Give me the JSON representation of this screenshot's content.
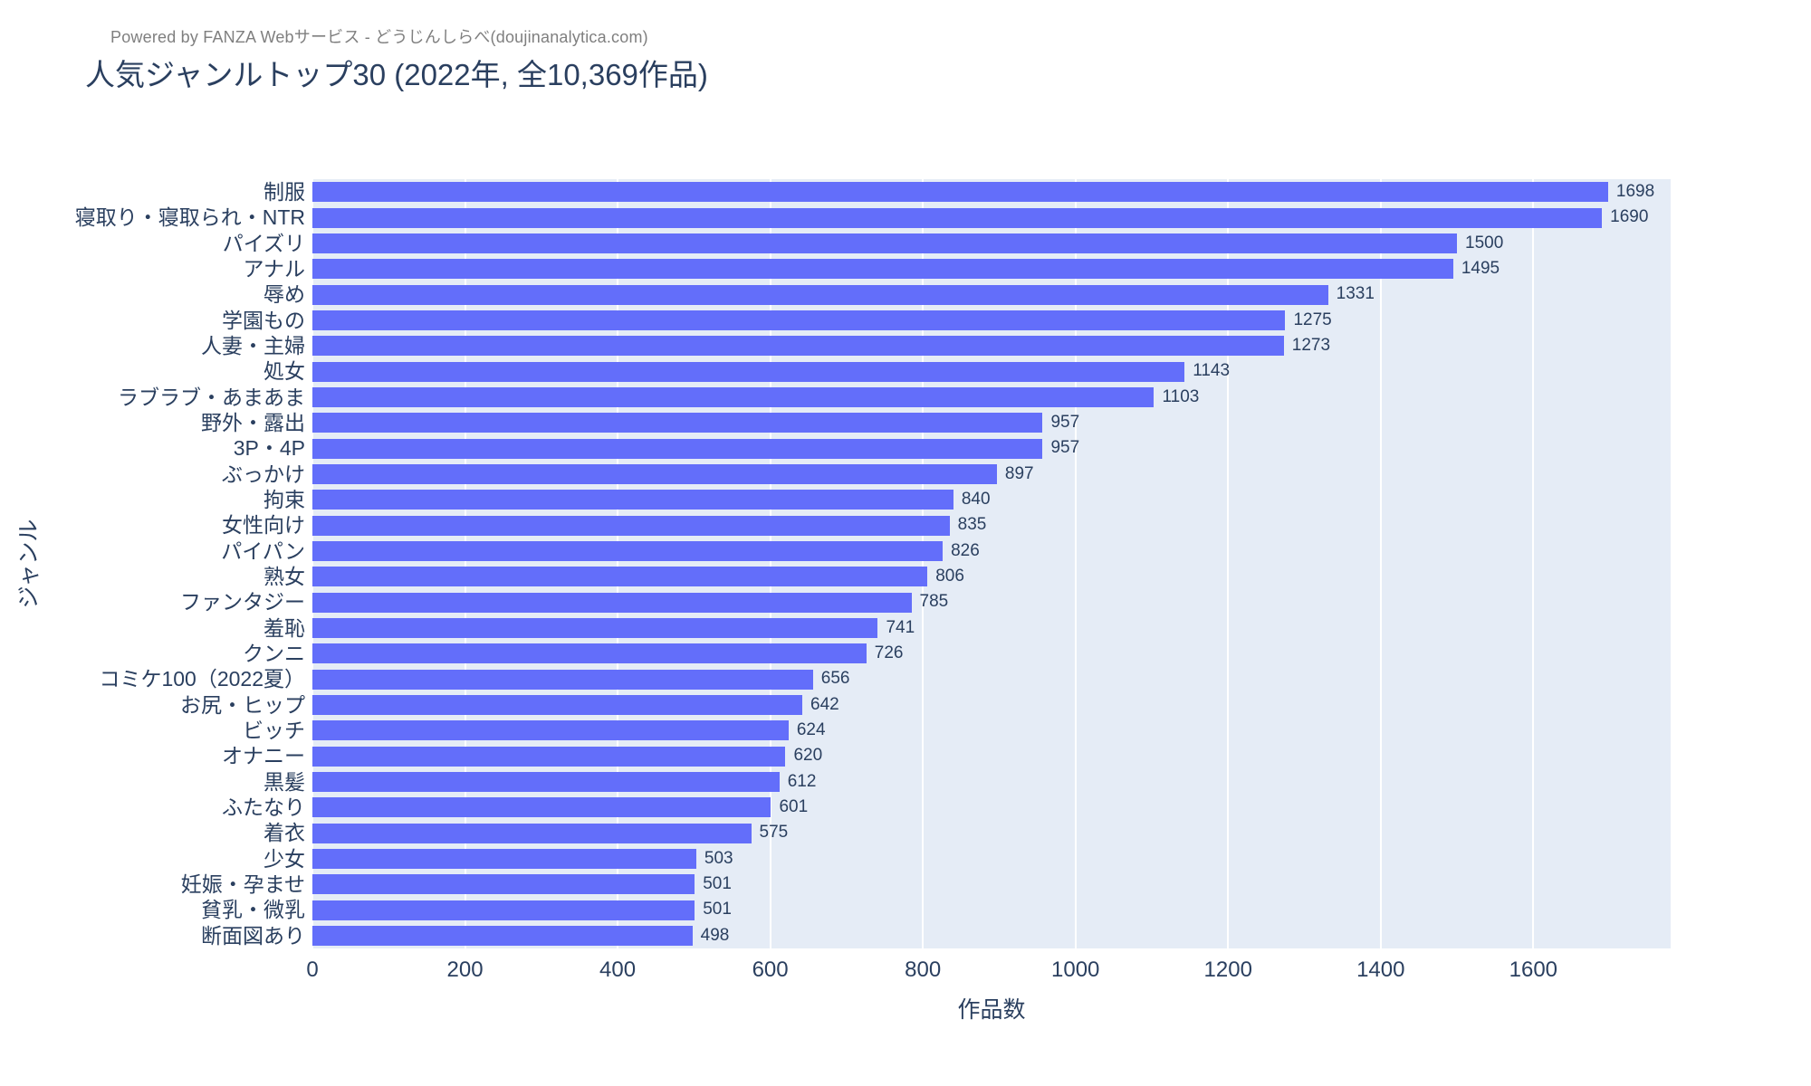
{
  "header": {
    "powered_by": "Powered by FANZA Webサービス - どうじんしらべ(doujinanalytica.com)"
  },
  "title": "人気ジャンルトップ30 (2022年, 全10,369作品)",
  "chart_data": {
    "type": "bar",
    "orientation": "horizontal",
    "title": "人気ジャンルトップ30 (2022年, 全10,369作品)",
    "categories": [
      "制服",
      "寝取り・寝取られ・NTR",
      "パイズリ",
      "アナル",
      "辱め",
      "学園もの",
      "人妻・主婦",
      "処女",
      "ラブラブ・あまあま",
      "野外・露出",
      "3P・4P",
      "ぶっかけ",
      "拘束",
      "女性向け",
      "パイパン",
      "熟女",
      "ファンタジー",
      "羞恥",
      "クンニ",
      "コミケ100（2022夏）",
      "お尻・ヒップ",
      "ビッチ",
      "オナニー",
      "黒髪",
      "ふたなり",
      "着衣",
      "少女",
      "妊娠・孕ませ",
      "貧乳・微乳",
      "断面図あり"
    ],
    "values": [
      1698,
      1690,
      1500,
      1495,
      1331,
      1275,
      1273,
      1143,
      1103,
      957,
      957,
      897,
      840,
      835,
      826,
      806,
      785,
      741,
      726,
      656,
      642,
      624,
      620,
      612,
      601,
      575,
      503,
      501,
      501,
      498
    ],
    "xlabel": "作品数",
    "ylabel": "ジャンル",
    "xlim": [
      0,
      1780
    ],
    "x_ticks": [
      0,
      200,
      400,
      600,
      800,
      1000,
      1200,
      1400,
      1600
    ],
    "grid": true,
    "legend_position": "none",
    "bar_color": "#636EFA",
    "plot_bg_color": "#E5ECF6",
    "grid_color": "#FFFFFF",
    "text_color": "#2a3f5f",
    "watermark_color": "#7f7f7f"
  }
}
